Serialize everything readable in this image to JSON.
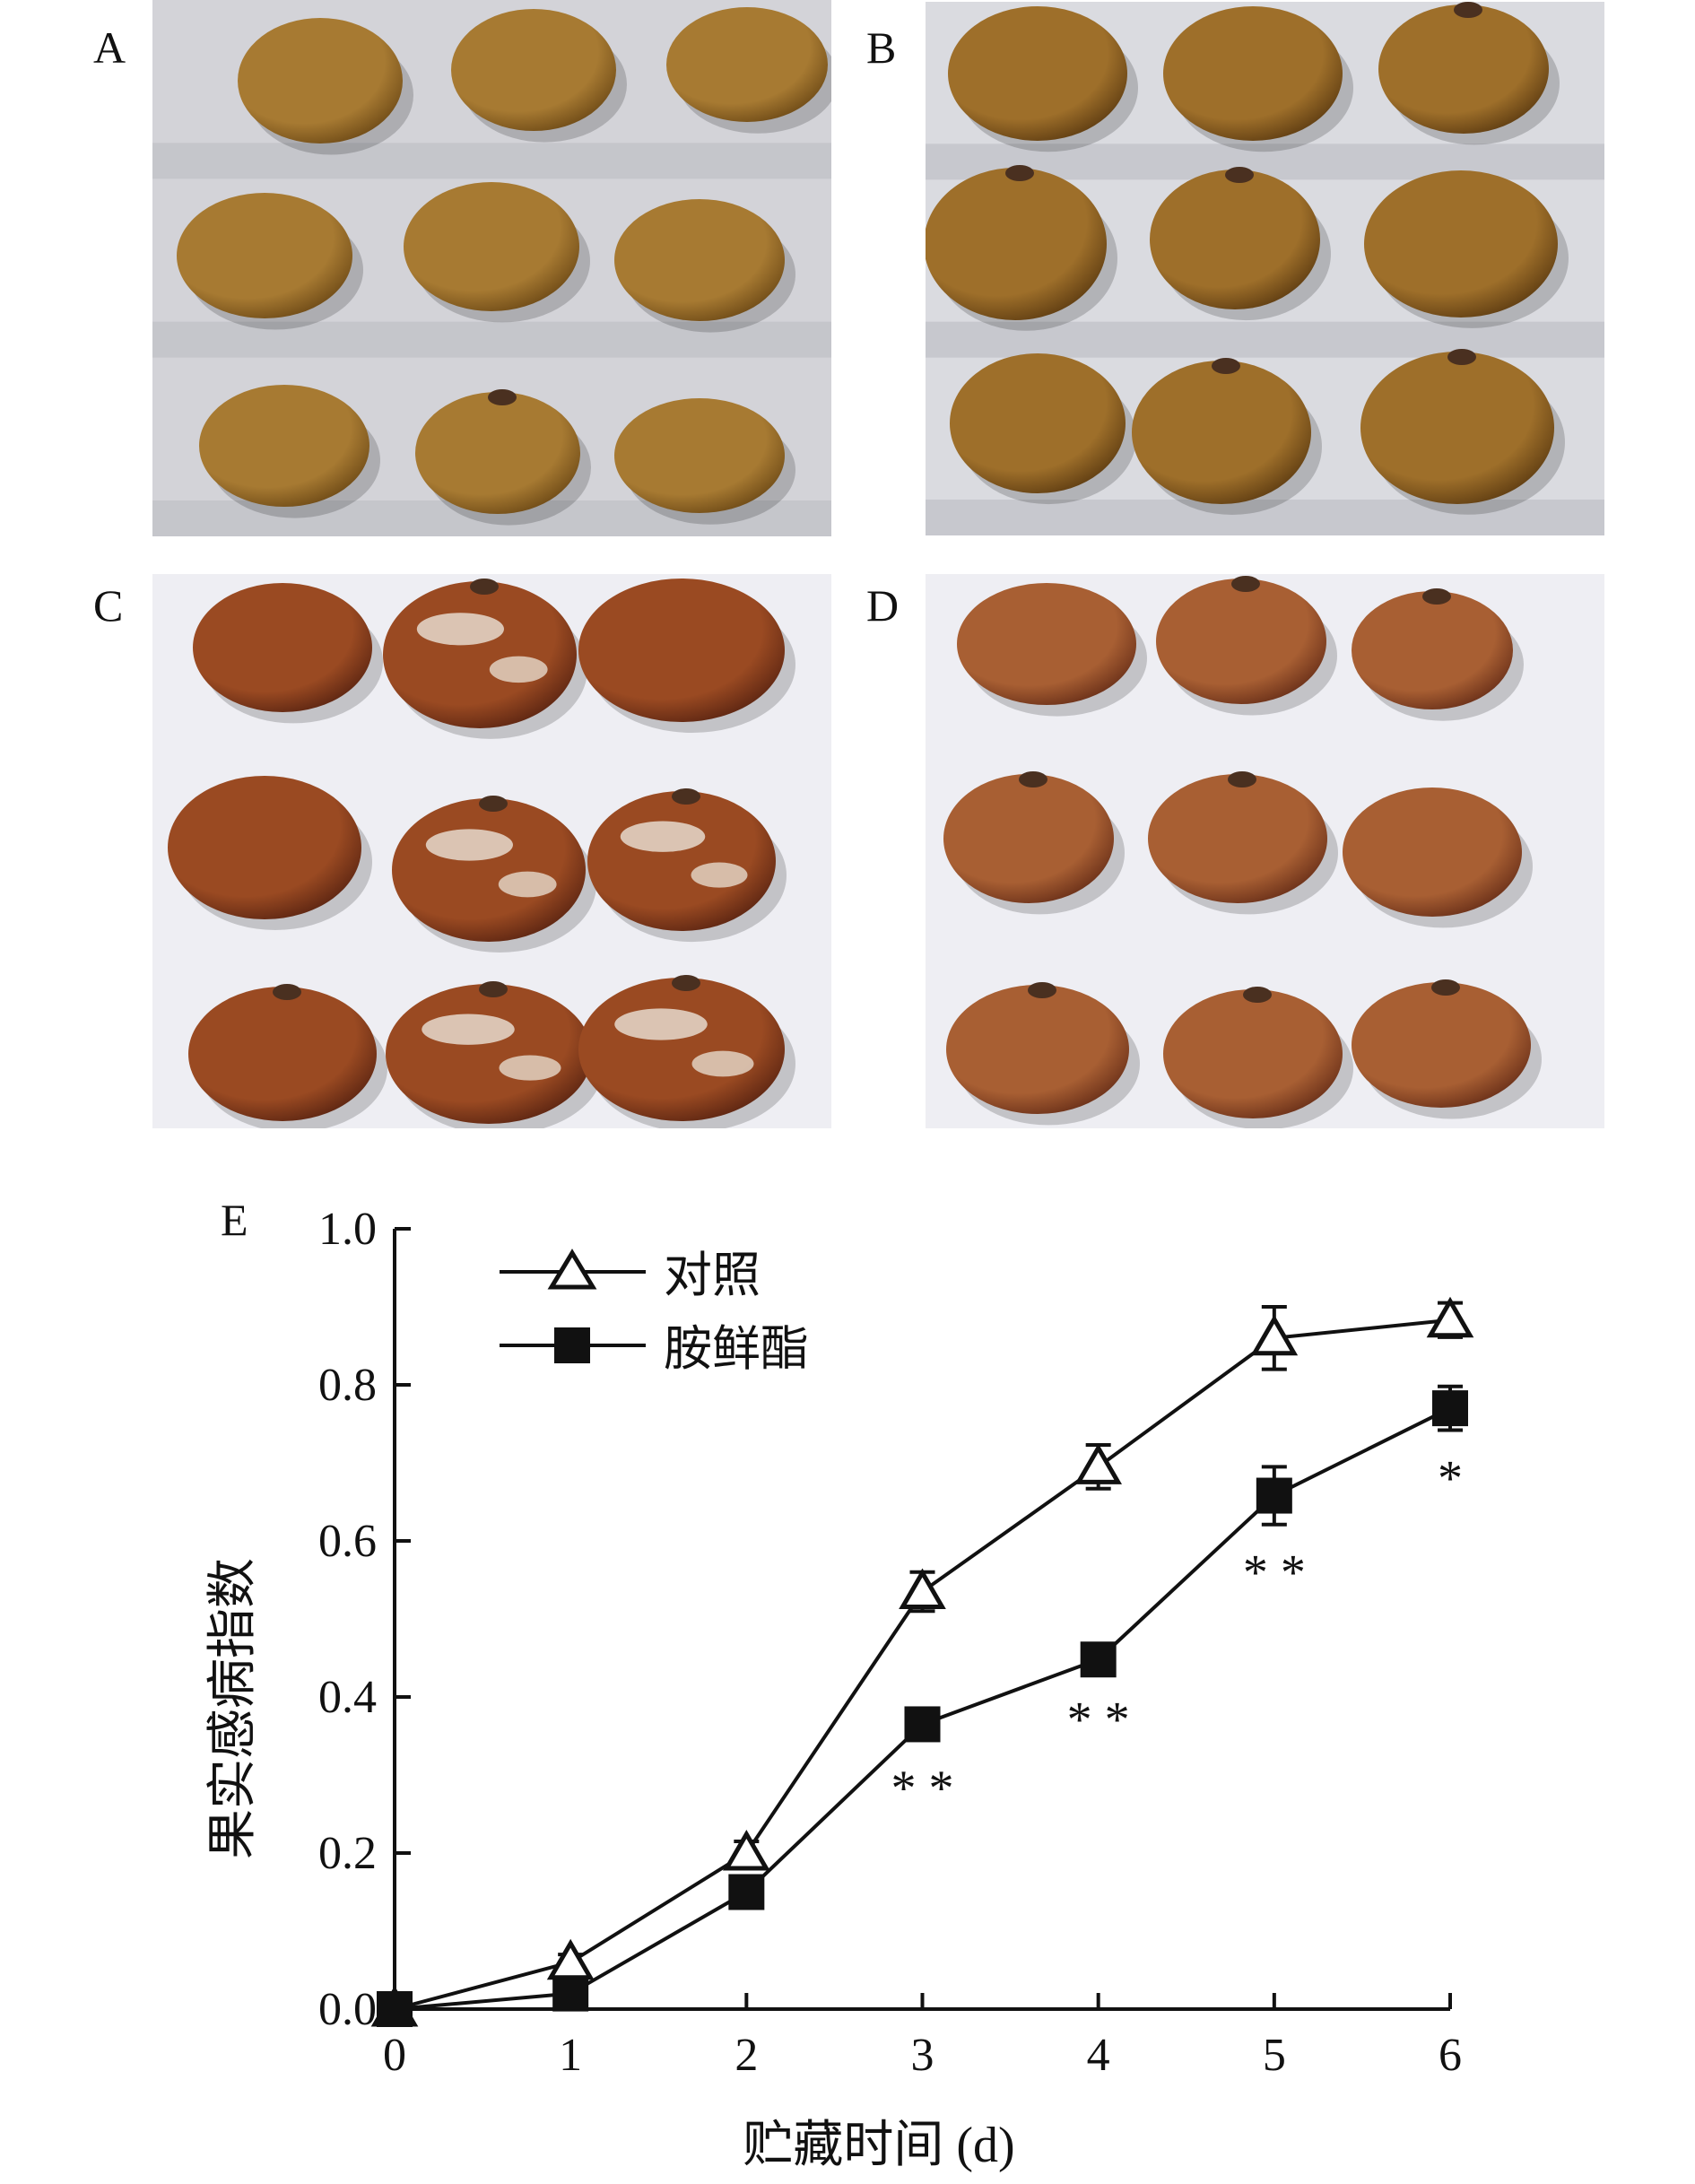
{
  "panels": [
    {
      "label": "A",
      "palette": {
        "bg": "#d3d3d8",
        "fruit": "#a77a32",
        "fruit_dark": "#6f4b17"
      }
    },
    {
      "label": "B",
      "palette": {
        "bg": "#dadbe0",
        "fruit": "#9e6f2a",
        "fruit_dark": "#5f3d12"
      }
    },
    {
      "label": "C",
      "palette": {
        "bg": "#eeeef3",
        "fruit": "#9a4a22",
        "fruit_dark": "#5c2512",
        "mold": "#e6d9cc"
      }
    },
    {
      "label": "D",
      "palette": {
        "bg": "#eeeef3",
        "fruit": "#a85f33",
        "fruit_dark": "#6a3019"
      }
    }
  ],
  "chart_data": {
    "type": "line",
    "panel_label": "E",
    "xlabel": "贮藏时间 (d)",
    "ylabel": "果实感病指数",
    "x": [
      0,
      1,
      2,
      3,
      4,
      5,
      6
    ],
    "xticks": [
      "0",
      "1",
      "2",
      "3",
      "4",
      "5",
      "6"
    ],
    "yticks": [
      "0.0",
      "0.2",
      "0.4",
      "0.6",
      "0.8",
      "1.0"
    ],
    "ylim": [
      0,
      1.0
    ],
    "xlim": [
      0,
      6
    ],
    "legend_position": "top-left",
    "series": [
      {
        "name": "对照",
        "marker": "open-triangle",
        "values": [
          0.0,
          0.06,
          0.2,
          0.535,
          0.695,
          0.86,
          0.883
        ],
        "errors": [
          0.0,
          0.01,
          0.015,
          0.025,
          0.028,
          0.04,
          0.022
        ]
      },
      {
        "name": "胺鲜酯",
        "marker": "filled-square",
        "values": [
          0.0,
          0.02,
          0.15,
          0.365,
          0.448,
          0.658,
          0.77
        ],
        "errors": [
          0.0,
          0.005,
          0.012,
          0.02,
          0.015,
          0.037,
          0.028
        ]
      }
    ],
    "significance": [
      {
        "x": 3,
        "label": "* *"
      },
      {
        "x": 4,
        "label": "* *"
      },
      {
        "x": 5,
        "label": "* *"
      },
      {
        "x": 6,
        "label": "*"
      }
    ]
  }
}
